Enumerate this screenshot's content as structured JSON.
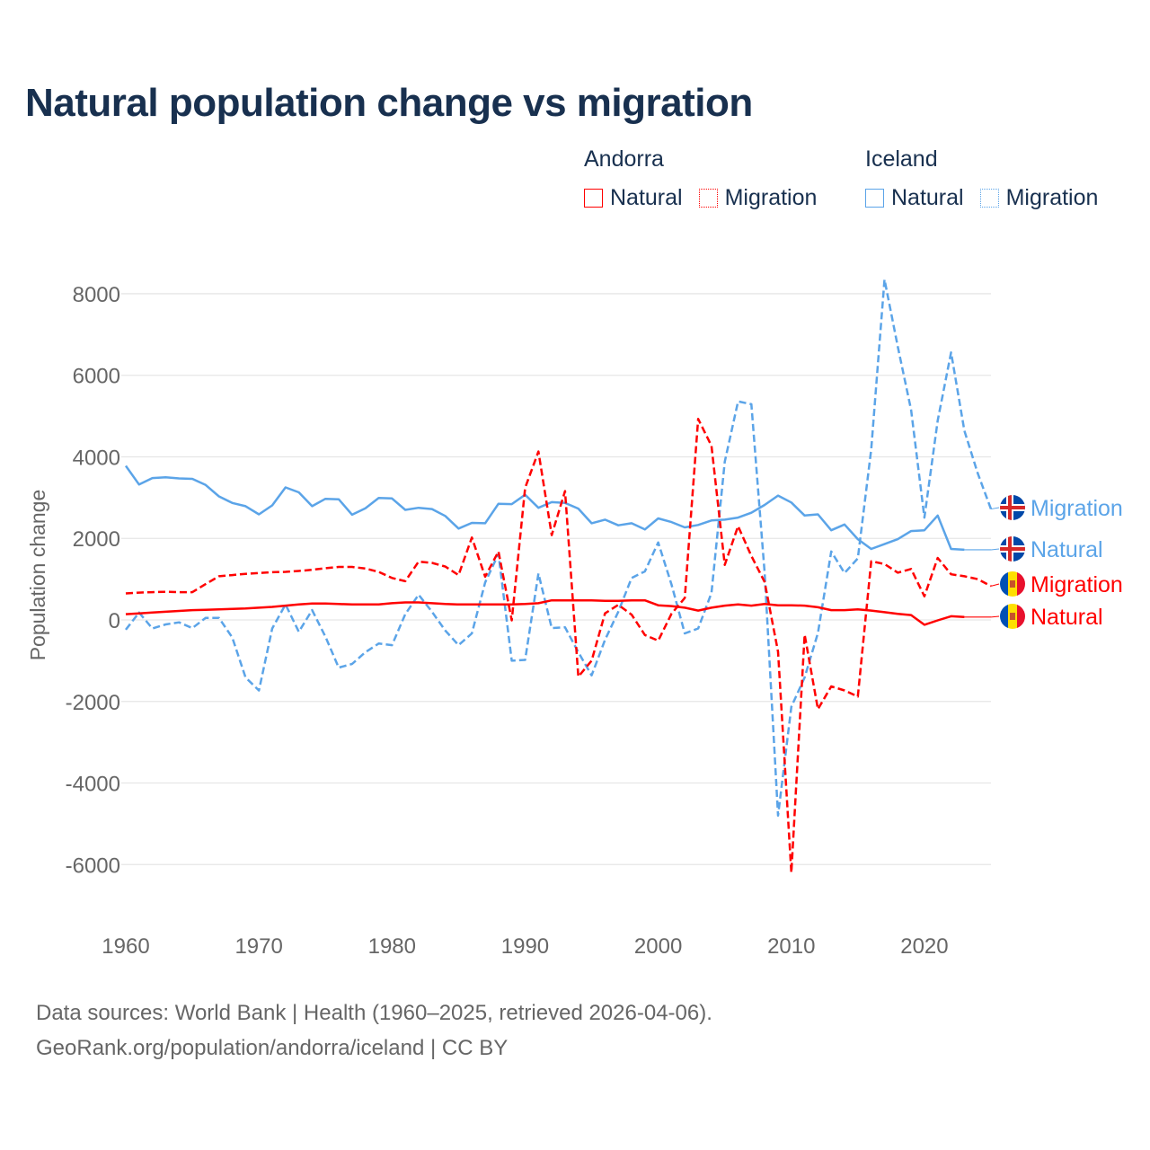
{
  "title": "Natural population change vs migration",
  "legend": [
    {
      "group": "Andorra",
      "items": [
        {
          "label": "Natural",
          "style": "solid",
          "color": "#ff0000"
        },
        {
          "label": "Migration",
          "style": "dotted",
          "color": "#ff0000"
        }
      ]
    },
    {
      "group": "Iceland",
      "items": [
        {
          "label": "Natural",
          "style": "solid",
          "color": "#5ba4e8"
        },
        {
          "label": "Migration",
          "style": "dotted",
          "color": "#5ba4e8"
        }
      ]
    }
  ],
  "footer": {
    "line1": "Data sources: World Bank | Health (1960–2025, retrieved 2026-04-06).",
    "line2": "GeoRank.org/population/andorra/iceland | CC BY"
  },
  "chart_data": {
    "type": "line",
    "title": "Natural population change vs migration",
    "xlabel": "",
    "ylabel": "Population change",
    "xlim": [
      1960,
      2025
    ],
    "ylim": [
      -7000,
      8500
    ],
    "xticks": [
      1960,
      1970,
      1980,
      1990,
      2000,
      2010,
      2020
    ],
    "yticks": [
      -6000,
      -4000,
      -2000,
      0,
      2000,
      4000,
      6000,
      8000
    ],
    "grid": true,
    "legend_position": "top-right",
    "x_start": 1960,
    "series": [
      {
        "name": "Iceland Migration",
        "end_label": "Migration",
        "country": "Iceland",
        "color": "#5ba4e8",
        "dashed": true,
        "values": [
          -240,
          180,
          -210,
          -110,
          -60,
          -200,
          50,
          50,
          -430,
          -1410,
          -1730,
          -210,
          380,
          -290,
          240,
          -410,
          -1170,
          -1080,
          -790,
          -580,
          -620,
          140,
          620,
          200,
          -260,
          -620,
          -330,
          920,
          1620,
          -1000,
          -980,
          1140,
          -200,
          -180,
          -790,
          -1360,
          -490,
          200,
          1030,
          1190,
          1900,
          870,
          -330,
          -210,
          660,
          3880,
          5360,
          5290,
          1150,
          -4800,
          -2130,
          -1410,
          -320,
          1680,
          1150,
          1510,
          4180,
          8350,
          6700,
          5150,
          2510,
          4890,
          6560,
          4640,
          3600,
          2720
        ]
      },
      {
        "name": "Iceland Natural",
        "end_label": "Natural",
        "country": "Iceland",
        "color": "#5ba4e8",
        "dashed": false,
        "values": [
          3780,
          3320,
          3480,
          3500,
          3470,
          3460,
          3310,
          3030,
          2870,
          2790,
          2590,
          2810,
          3250,
          3130,
          2790,
          2970,
          2960,
          2580,
          2740,
          2990,
          2980,
          2700,
          2750,
          2720,
          2550,
          2240,
          2380,
          2370,
          2850,
          2840,
          3070,
          2750,
          2890,
          2870,
          2730,
          2370,
          2460,
          2320,
          2370,
          2220,
          2490,
          2400,
          2270,
          2330,
          2440,
          2460,
          2510,
          2630,
          2820,
          3050,
          2880,
          2560,
          2590,
          2200,
          2340,
          1980,
          1740,
          1860,
          1980,
          2180,
          2200,
          2560,
          1740,
          1720,
          1720,
          1720
        ]
      },
      {
        "name": "Andorra Migration",
        "end_label": "Migration",
        "country": "Andorra",
        "color": "#ff0000",
        "dashed": true,
        "values": [
          650,
          670,
          680,
          690,
          680,
          680,
          880,
          1070,
          1100,
          1130,
          1150,
          1170,
          1180,
          1200,
          1230,
          1270,
          1300,
          1300,
          1260,
          1180,
          1030,
          950,
          1430,
          1400,
          1310,
          1100,
          2020,
          1060,
          1680,
          -10,
          3240,
          4130,
          2080,
          3160,
          -1390,
          -1000,
          160,
          370,
          130,
          -370,
          -510,
          150,
          540,
          4930,
          4270,
          1350,
          2300,
          1570,
          930,
          -780,
          -6200,
          -360,
          -2190,
          -1630,
          -1730,
          -1880,
          1440,
          1370,
          1160,
          1250,
          580,
          1520,
          1120,
          1070,
          1000,
          830
        ]
      },
      {
        "name": "Andorra Natural",
        "end_label": "Natural",
        "country": "Andorra",
        "color": "#ff0000",
        "dashed": false,
        "values": [
          140,
          160,
          180,
          200,
          220,
          240,
          250,
          260,
          270,
          280,
          300,
          320,
          350,
          380,
          400,
          400,
          390,
          380,
          380,
          380,
          410,
          430,
          430,
          410,
          390,
          380,
          380,
          380,
          380,
          380,
          390,
          410,
          480,
          480,
          480,
          480,
          470,
          470,
          480,
          480,
          360,
          340,
          300,
          230,
          300,
          350,
          380,
          350,
          390,
          360,
          360,
          350,
          310,
          240,
          240,
          260,
          230,
          190,
          150,
          120,
          -120,
          -10,
          90,
          70,
          70,
          70
        ]
      }
    ]
  }
}
